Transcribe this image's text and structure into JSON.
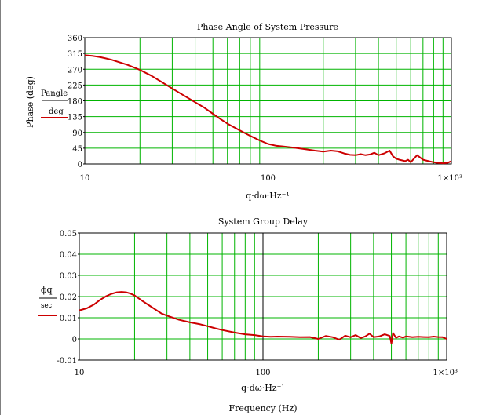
{
  "page": {
    "side_label": "Phase (deg)",
    "bottom_label": "Frequency (Hz)"
  },
  "chart_data": [
    {
      "type": "line",
      "title": "Phase Angle of System Pressure",
      "xlabel": "q·dω·Hz⁻¹",
      "xscale": "log",
      "xlim": [
        10,
        1000
      ],
      "x_tick_labels": [
        "10",
        "100",
        "1×10³"
      ],
      "ylim": [
        0,
        360
      ],
      "y_ticks": [
        0,
        45,
        90,
        135,
        180,
        225,
        270,
        315,
        360
      ],
      "y_tick_labels": [
        "0",
        "45",
        "90",
        "135",
        "180",
        "225",
        "270",
        "315",
        "360"
      ],
      "legend": {
        "numerator": "Pangle",
        "denominator": "deg",
        "placement": "left"
      },
      "grid": true,
      "colors": {
        "line": "#cc0000",
        "grid": "#00b400",
        "center_line": "#000000"
      },
      "series": [
        {
          "x": [
            10,
            11,
            12,
            13,
            14,
            15,
            17,
            20,
            23,
            26,
            30,
            35,
            40,
            45,
            50,
            55,
            60,
            70,
            80,
            90,
            100,
            110,
            120,
            140,
            160,
            180,
            200,
            220,
            240,
            260,
            280,
            300,
            320,
            340,
            360,
            380,
            400,
            430,
            460,
            480,
            500,
            520,
            540,
            560,
            580,
            600,
            650,
            700,
            750,
            800,
            850,
            900,
            950,
            1000
          ],
          "y": [
            310,
            308,
            305,
            301,
            297,
            292,
            283,
            268,
            252,
            235,
            215,
            194,
            176,
            160,
            143,
            128,
            115,
            96,
            80,
            67,
            57,
            52,
            50,
            46,
            42,
            38,
            35,
            38,
            36,
            30,
            26,
            25,
            28,
            25,
            27,
            32,
            25,
            30,
            38,
            22,
            15,
            12,
            10,
            8,
            12,
            5,
            25,
            12,
            8,
            5,
            3,
            2,
            3,
            8
          ]
        }
      ]
    },
    {
      "type": "line",
      "title": "System Group Delay",
      "xlabel": "q·dω·Hz⁻¹",
      "xscale": "log",
      "xlim": [
        10,
        1000
      ],
      "x_tick_labels": [
        "10",
        "100",
        "1×10³"
      ],
      "ylim": [
        -0.01,
        0.05
      ],
      "y_ticks": [
        -0.01,
        0,
        0.01,
        0.02,
        0.03,
        0.04,
        0.05
      ],
      "y_tick_labels": [
        "-0.01",
        "0",
        "0.01",
        "0.02",
        "0.03",
        "0.04",
        "0.05"
      ],
      "legend": {
        "numerator": "ϕq",
        "denominator": "sec",
        "placement": "left"
      },
      "grid": true,
      "colors": {
        "line": "#cc0000",
        "grid": "#00b400",
        "center_line": "#000000"
      },
      "series": [
        {
          "x": [
            10,
            11,
            12,
            13,
            14,
            15,
            16,
            17,
            18,
            19,
            20,
            22,
            25,
            28,
            30,
            35,
            40,
            45,
            50,
            55,
            60,
            70,
            80,
            90,
            100,
            110,
            120,
            140,
            160,
            180,
            200,
            220,
            240,
            260,
            280,
            300,
            320,
            340,
            360,
            380,
            400,
            430,
            460,
            490,
            500,
            510,
            530,
            550,
            580,
            600,
            650,
            700,
            750,
            800,
            850,
            900,
            950,
            1000
          ],
          "y": [
            0.0135,
            0.0145,
            0.0162,
            0.0185,
            0.0202,
            0.0213,
            0.022,
            0.0222,
            0.022,
            0.0214,
            0.0205,
            0.018,
            0.0148,
            0.012,
            0.011,
            0.009,
            0.0078,
            0.007,
            0.006,
            0.005,
            0.0042,
            0.003,
            0.0022,
            0.0018,
            0.0012,
            0.001,
            0.0011,
            0.001,
            0.0008,
            0.0009,
            0.0,
            0.0014,
            0.0008,
            -0.0004,
            0.0015,
            0.0008,
            0.0018,
            0.0004,
            0.0012,
            0.0025,
            0.0008,
            0.0012,
            0.0022,
            0.0014,
            -0.0022,
            0.0028,
            0.0005,
            0.0012,
            0.0006,
            0.0012,
            0.0008,
            0.001,
            0.0009,
            0.0008,
            0.0011,
            0.0009,
            0.0008,
            0.0
          ]
        }
      ]
    }
  ]
}
